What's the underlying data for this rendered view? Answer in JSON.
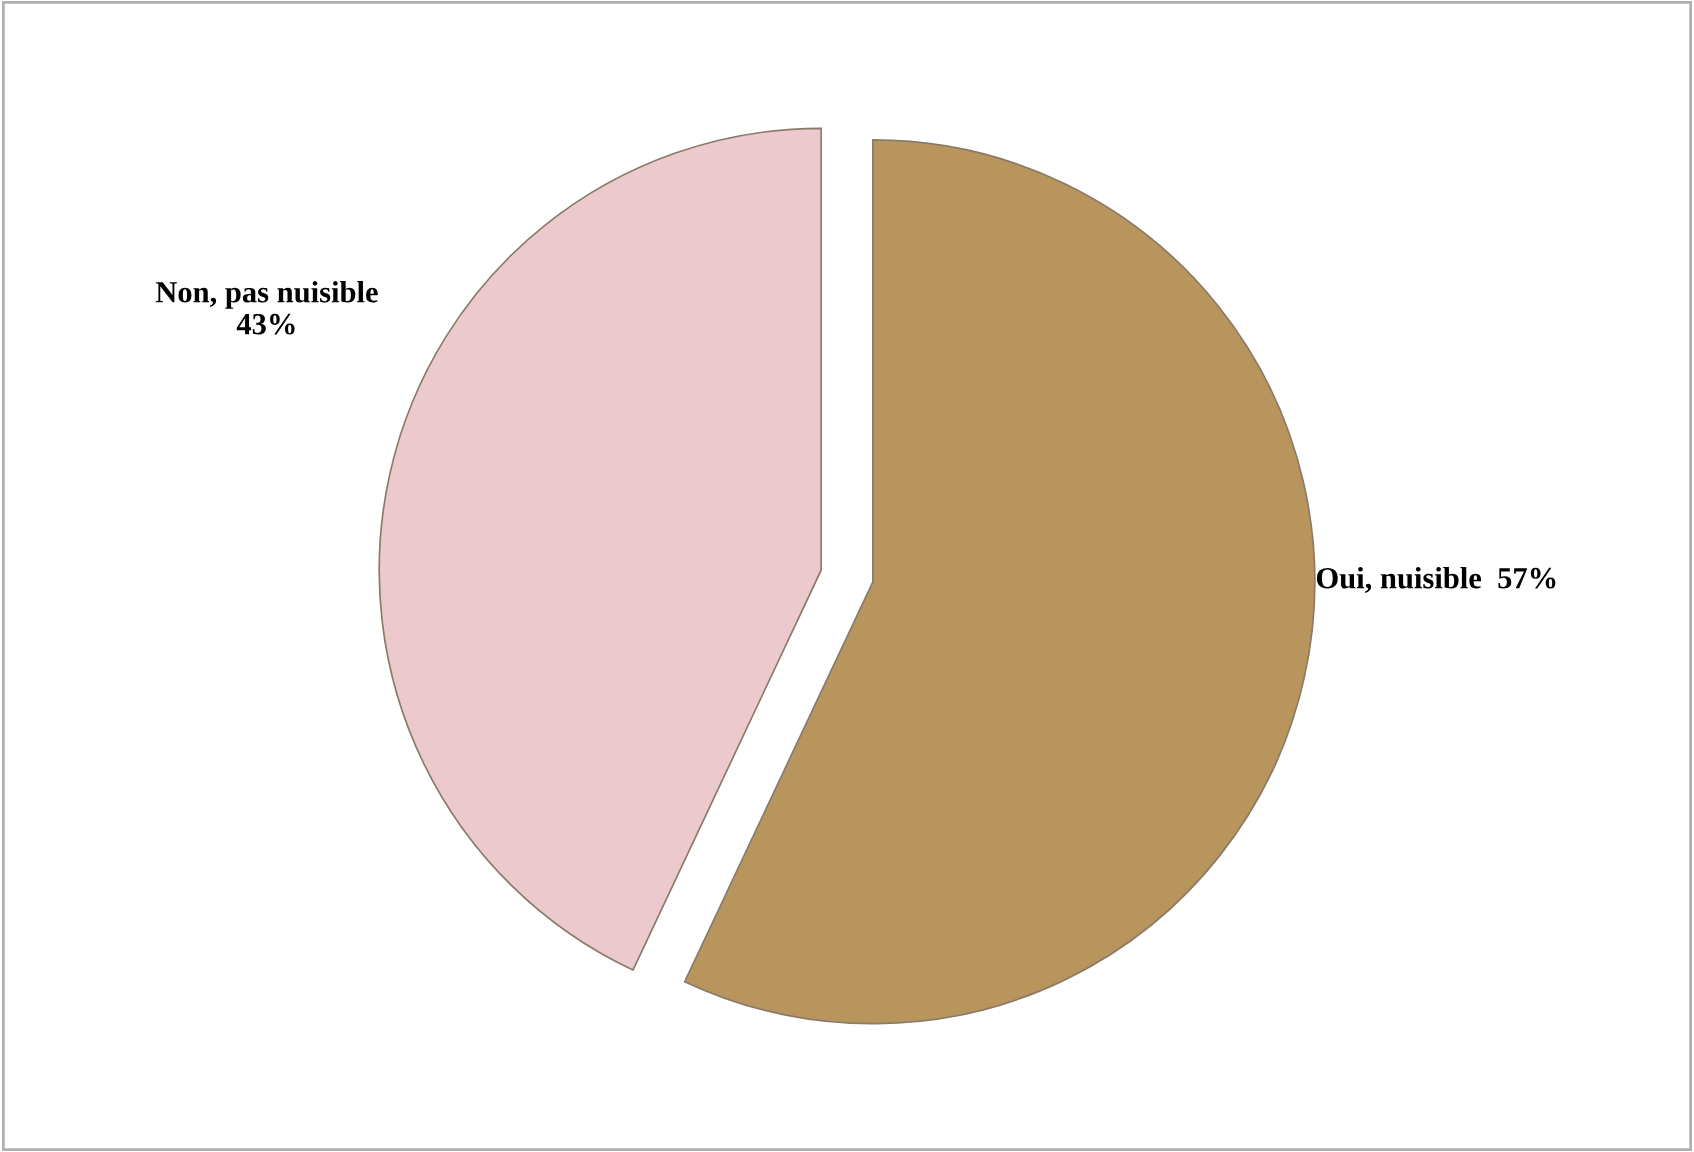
{
  "chart_data": {
    "type": "pie",
    "categories": [
      "Oui, nuisible",
      "Non, pas nuisible"
    ],
    "values": [
      57,
      43
    ],
    "value_labels": [
      "57%",
      "43%"
    ],
    "colors": [
      "#b8955c",
      "#ebc9cc"
    ]
  }
}
